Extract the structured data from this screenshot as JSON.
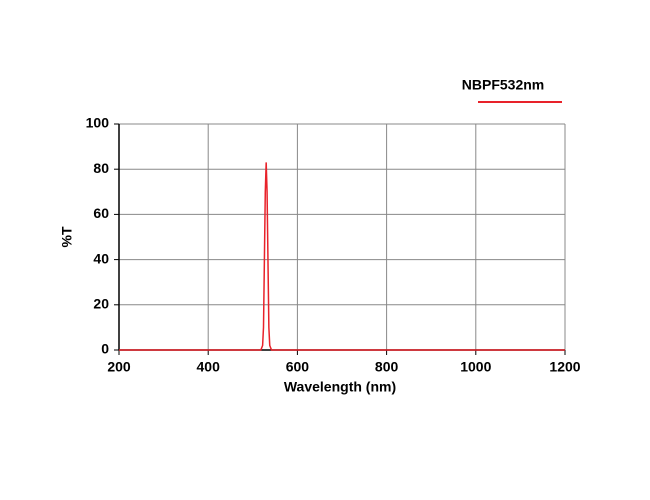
{
  "chart_data": {
    "type": "line",
    "legend_title": null,
    "x_label": "Wavelength (nm)",
    "y_label": "%T",
    "x": [
      200,
      518,
      522,
      524,
      526,
      528,
      530,
      532,
      534,
      536,
      538,
      542,
      1200
    ],
    "series": [
      {
        "name": "NBPF532nm",
        "color": "#e8222a",
        "values": [
          0,
          0,
          2,
          10,
          40,
          70,
          83,
          70,
          40,
          10,
          2,
          0,
          0
        ]
      }
    ],
    "xlim": [
      200,
      1200
    ],
    "xticks": [
      200,
      400,
      600,
      800,
      1000,
      1200
    ],
    "ylim": [
      0,
      100
    ],
    "yticks": [
      0,
      20,
      40,
      60,
      80,
      100
    ],
    "grid": true,
    "legend": "top-right"
  }
}
